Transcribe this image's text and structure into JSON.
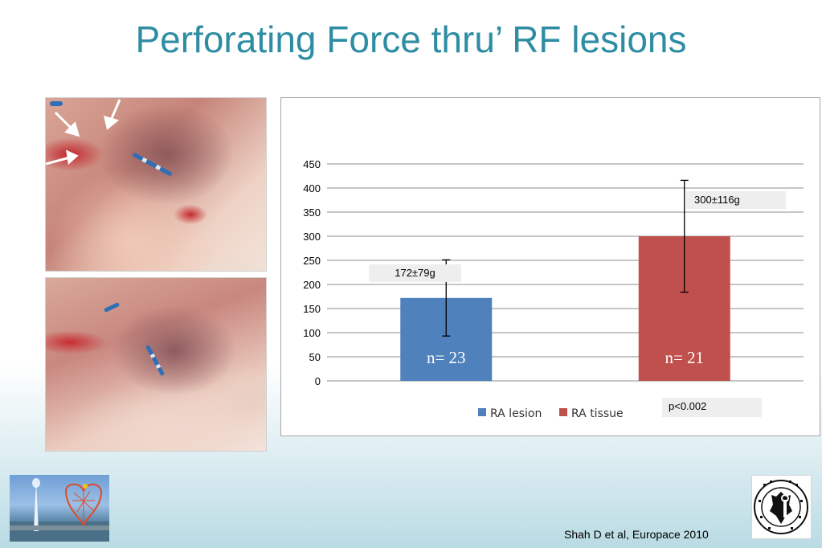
{
  "slide": {
    "title": "Perforating Force thru’ RF lesions",
    "citation": "Shah D et al, Europace 2010"
  },
  "images": {
    "photo_top": "Heart tissue photo with three white arrows pointing to RF lesions",
    "photo_bottom": "Heart tissue photo with ablation catheter",
    "logo_left": "Geneva jet d'eau with heart illustration",
    "logo_right": "Schola Genevensis seal"
  },
  "annotations": {
    "lesion_label": "172±79g",
    "tissue_label": "300±116g",
    "p_value": "p<0.002"
  },
  "chart_data": {
    "type": "bar",
    "categories": [
      "RA lesion",
      "RA tissue"
    ],
    "values": [
      172,
      300
    ],
    "error": [
      79,
      116
    ],
    "counts": [
      "n= 23",
      "n= 21"
    ],
    "colors": [
      "#4f81bd",
      "#c0504d"
    ],
    "ylim": [
      0,
      450
    ],
    "yticks": [
      0,
      50,
      100,
      150,
      200,
      250,
      300,
      350,
      400,
      450
    ],
    "grid": true,
    "legend": "bottom",
    "legend_entries": [
      "RA lesion",
      "RA tissue"
    ]
  }
}
